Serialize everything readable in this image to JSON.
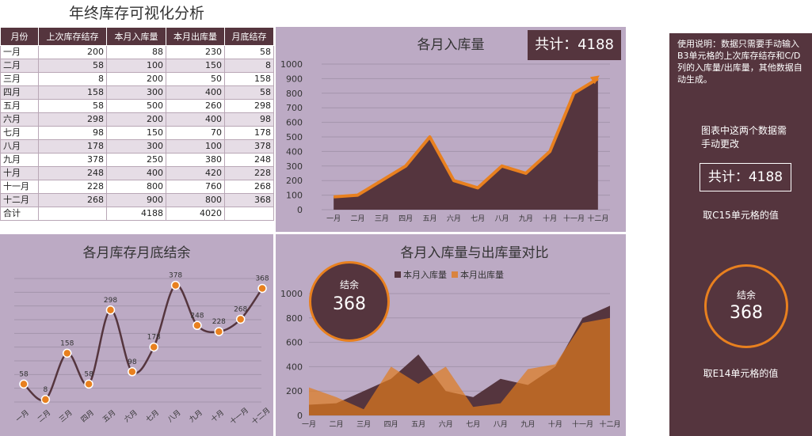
{
  "page": {
    "title": "年终库存可视化分析"
  },
  "table": {
    "headers": [
      "月份",
      "上次库存结存",
      "本月入库量",
      "本月出库量",
      "月底结存"
    ],
    "rows": [
      [
        "一月",
        "200",
        "88",
        "230",
        "58"
      ],
      [
        "二月",
        "58",
        "100",
        "150",
        "8"
      ],
      [
        "三月",
        "8",
        "200",
        "50",
        "158"
      ],
      [
        "四月",
        "158",
        "300",
        "400",
        "58"
      ],
      [
        "五月",
        "58",
        "500",
        "260",
        "298"
      ],
      [
        "六月",
        "298",
        "200",
        "400",
        "98"
      ],
      [
        "七月",
        "98",
        "150",
        "70",
        "178"
      ],
      [
        "八月",
        "178",
        "300",
        "100",
        "378"
      ],
      [
        "九月",
        "378",
        "250",
        "380",
        "248"
      ],
      [
        "十月",
        "248",
        "400",
        "420",
        "228"
      ],
      [
        "十一月",
        "228",
        "800",
        "760",
        "268"
      ],
      [
        "十二月",
        "268",
        "900",
        "800",
        "368"
      ],
      [
        "合计",
        "",
        "4188",
        "4020",
        ""
      ]
    ]
  },
  "kpi": {
    "total_label": "共计：4188",
    "balance_label": "结余",
    "balance_value": "368"
  },
  "sidebar": {
    "instructions": "使用说明：数据只需要手动输入B3单元格的上次库存结存和C/D列的入库量/出库量，其他数据自动生成。",
    "note": "图表中这两个数据需手动更改",
    "total_box": "共计：4188",
    "total_caption": "取C15单元格的值",
    "balance_label": "结余",
    "balance_value": "368",
    "balance_caption": "取E14单元格的值"
  },
  "colors": {
    "dark": "#55353E",
    "panel": "#bcaac4",
    "orange": "#E8801F",
    "in_fill": "#55353E",
    "out_fill": "#E07A1E"
  },
  "chart_data": [
    {
      "type": "area",
      "title": "各月入库量",
      "categories": [
        "一月",
        "二月",
        "三月",
        "四月",
        "五月",
        "六月",
        "七月",
        "八月",
        "九月",
        "十月",
        "十一月",
        "十二月"
      ],
      "series": [
        {
          "name": "本月入库量",
          "values": [
            88,
            100,
            200,
            300,
            500,
            200,
            150,
            300,
            250,
            400,
            800,
            900
          ]
        }
      ],
      "ylim": [
        0,
        1000
      ],
      "yticks": [
        0,
        100,
        200,
        300,
        400,
        500,
        600,
        700,
        800,
        900,
        1000
      ],
      "grid": true
    },
    {
      "type": "line",
      "title": "各月库存月底结余",
      "categories": [
        "一月",
        "二月",
        "三月",
        "四月",
        "五月",
        "六月",
        "七月",
        "八月",
        "九月",
        "十月",
        "十一月",
        "十二月"
      ],
      "series": [
        {
          "name": "月底结存",
          "values": [
            58,
            8,
            158,
            58,
            298,
            98,
            178,
            378,
            248,
            228,
            268,
            368
          ]
        }
      ],
      "data_labels": true,
      "grid": true
    },
    {
      "type": "area",
      "title": "各月入库量与出库量对比",
      "categories": [
        "一月",
        "二月",
        "三月",
        "四月",
        "五月",
        "六月",
        "七月",
        "八月",
        "九月",
        "十月",
        "十一月",
        "十二月"
      ],
      "series": [
        {
          "name": "本月入库量",
          "values": [
            88,
            100,
            200,
            300,
            500,
            200,
            150,
            300,
            250,
            400,
            800,
            900
          ]
        },
        {
          "name": "本月出库量",
          "values": [
            230,
            150,
            50,
            400,
            260,
            400,
            70,
            100,
            380,
            420,
            760,
            800
          ]
        }
      ],
      "ylim": [
        0,
        1000
      ],
      "yticks": [
        0,
        200,
        400,
        600,
        800,
        1000
      ],
      "legend": "top",
      "grid": true
    }
  ]
}
